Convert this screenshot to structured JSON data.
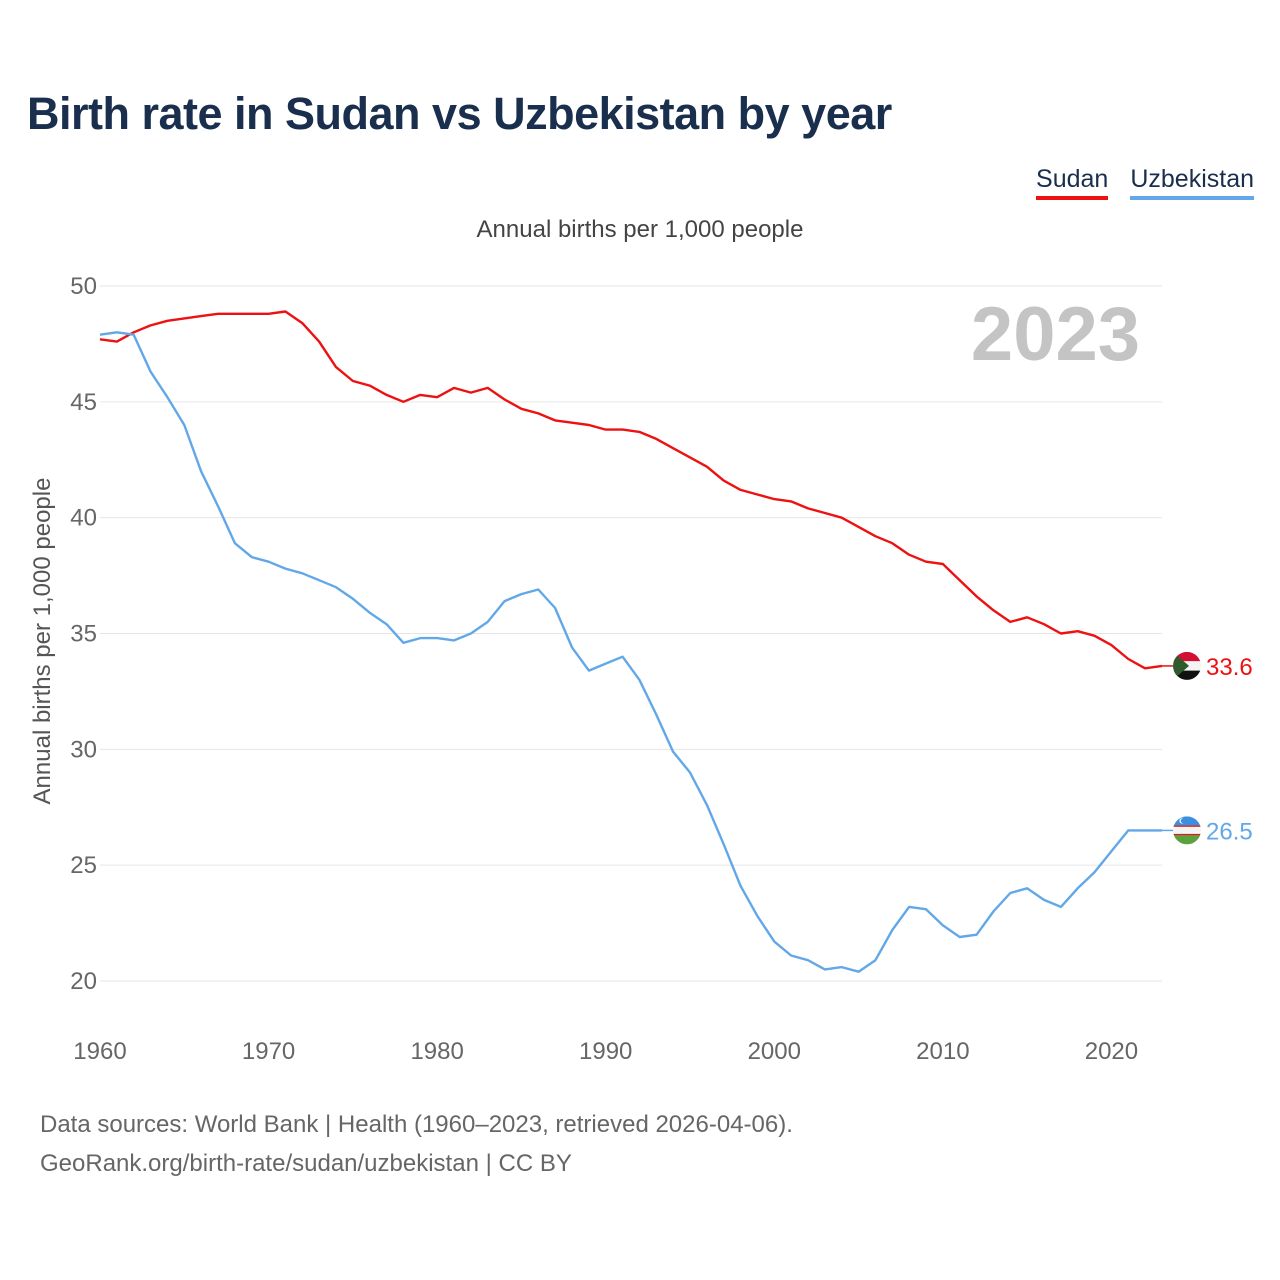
{
  "title": "Birth rate in Sudan vs Uzbekistan by year",
  "legend": {
    "sudan": "Sudan",
    "uzbekistan": "Uzbekistan"
  },
  "subtitle": "Annual births per 1,000 people",
  "footer": {
    "line1": "Data sources: World Bank | Health (1960–2023, retrieved 2026-04-06).",
    "line2": "GeoRank.org/birth-rate/sudan/uzbekistan | CC BY"
  },
  "colors": {
    "sudan": "#ee1111",
    "uzbekistan": "#62a8e8",
    "grid": "#e6e6e6",
    "year_watermark": "#c4c4c4"
  },
  "chart_data": {
    "type": "line",
    "title": "Birth rate in Sudan vs Uzbekistan by year",
    "ylabel": "Annual births per 1,000 people",
    "xlabel": "",
    "ylim": [
      20,
      50
    ],
    "xlim": [
      1960,
      2023
    ],
    "y_ticks": [
      50,
      45,
      40,
      35,
      30,
      25,
      20
    ],
    "x_ticks": [
      1960,
      1970,
      1980,
      1990,
      2000,
      2010,
      2020
    ],
    "year_label": "2023",
    "x": [
      1960,
      1961,
      1962,
      1963,
      1964,
      1965,
      1966,
      1967,
      1968,
      1969,
      1970,
      1971,
      1972,
      1973,
      1974,
      1975,
      1976,
      1977,
      1978,
      1979,
      1980,
      1981,
      1982,
      1983,
      1984,
      1985,
      1986,
      1987,
      1988,
      1989,
      1990,
      1991,
      1992,
      1993,
      1994,
      1995,
      1996,
      1997,
      1998,
      1999,
      2000,
      2001,
      2002,
      2003,
      2004,
      2005,
      2006,
      2007,
      2008,
      2009,
      2010,
      2011,
      2012,
      2013,
      2014,
      2015,
      2016,
      2017,
      2018,
      2019,
      2020,
      2021,
      2022,
      2023
    ],
    "series": [
      {
        "name": "Sudan",
        "color": "#ee1111",
        "end_label": "33.6",
        "values": [
          47.7,
          47.6,
          48.0,
          48.3,
          48.5,
          48.6,
          48.7,
          48.8,
          48.8,
          48.8,
          48.8,
          48.9,
          48.4,
          47.6,
          46.5,
          45.9,
          45.7,
          45.3,
          45.0,
          45.3,
          45.2,
          45.6,
          45.4,
          45.6,
          45.1,
          44.7,
          44.5,
          44.2,
          44.1,
          44.0,
          43.8,
          43.8,
          43.7,
          43.4,
          43.0,
          42.6,
          42.2,
          41.6,
          41.2,
          41.0,
          40.8,
          40.7,
          40.4,
          40.2,
          40.0,
          39.6,
          39.2,
          38.9,
          38.4,
          38.1,
          38.0,
          37.3,
          36.6,
          36.0,
          35.5,
          35.7,
          35.4,
          35.0,
          35.1,
          34.9,
          34.5,
          33.9,
          33.5,
          33.6
        ]
      },
      {
        "name": "Uzbekistan",
        "color": "#62a8e8",
        "end_label": "26.5",
        "values": [
          47.9,
          48.0,
          47.9,
          46.3,
          45.2,
          44.0,
          42.0,
          40.5,
          38.9,
          38.3,
          38.1,
          37.8,
          37.6,
          37.3,
          37.0,
          36.5,
          35.9,
          35.4,
          34.6,
          34.8,
          34.8,
          34.7,
          35.0,
          35.5,
          36.4,
          36.7,
          36.9,
          36.1,
          34.4,
          33.4,
          33.7,
          34.0,
          33.0,
          31.5,
          29.9,
          29.0,
          27.6,
          25.9,
          24.1,
          22.8,
          21.7,
          21.1,
          20.9,
          20.5,
          20.6,
          20.4,
          20.9,
          22.2,
          23.2,
          23.1,
          22.4,
          21.9,
          22.0,
          23.0,
          23.8,
          24.0,
          23.5,
          23.2,
          24.0,
          24.7,
          25.6,
          26.5,
          26.5,
          26.5
        ]
      }
    ]
  }
}
